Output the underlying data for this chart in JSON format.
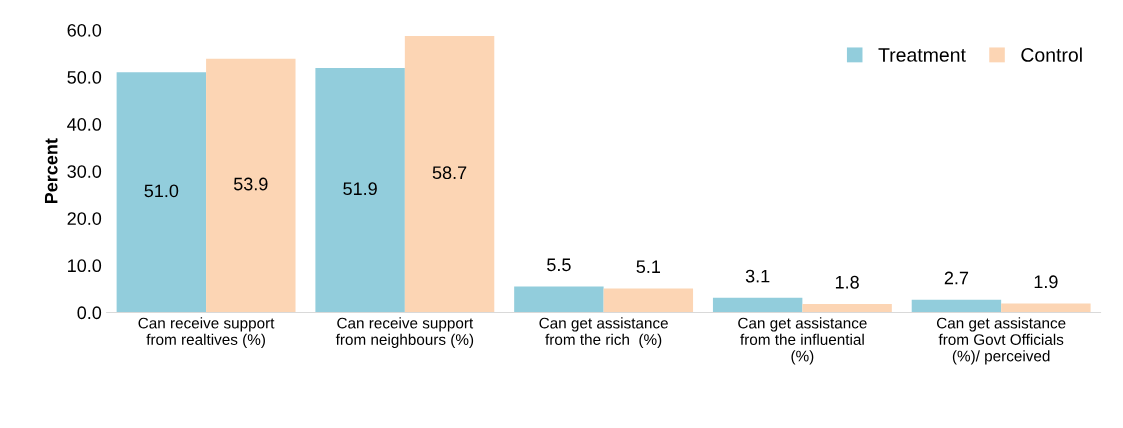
{
  "chart_data": {
    "type": "bar",
    "ylabel": "Percent",
    "categories": [
      "Can receive support\nfrom realtives (%)",
      "Can receive support\nfrom neighbours (%)",
      "Can get assistance\nfrom the rich  (%)",
      "Can get assistance\nfrom the influential\n(%)",
      "Can get assistance\nfrom Govt Officials\n(%)/ perceived"
    ],
    "series": [
      {
        "name": "Treatment",
        "color": "#92cddc",
        "values": [
          51.0,
          51.9,
          5.5,
          3.1,
          2.7
        ],
        "value_labels": [
          "51.0",
          "51.9",
          "5.5",
          "3.1",
          "2.7"
        ]
      },
      {
        "name": "Control",
        "color": "#fcd5b4",
        "values": [
          53.9,
          58.7,
          5.1,
          1.8,
          1.9
        ],
        "value_labels": [
          "53.9",
          "58.7",
          "5.1",
          "1.8",
          "1.9"
        ]
      }
    ],
    "ylim": [
      0,
      60
    ],
    "yticks": [
      {
        "value": 0,
        "label": "0.0"
      },
      {
        "value": 10,
        "label": "10.0"
      },
      {
        "value": 20,
        "label": "20.0"
      },
      {
        "value": 30,
        "label": "30.0"
      },
      {
        "value": 40,
        "label": "40.0"
      },
      {
        "value": 50,
        "label": "50.0"
      },
      {
        "value": 60,
        "label": "60.0"
      }
    ],
    "legend": "top right",
    "grid": false
  }
}
